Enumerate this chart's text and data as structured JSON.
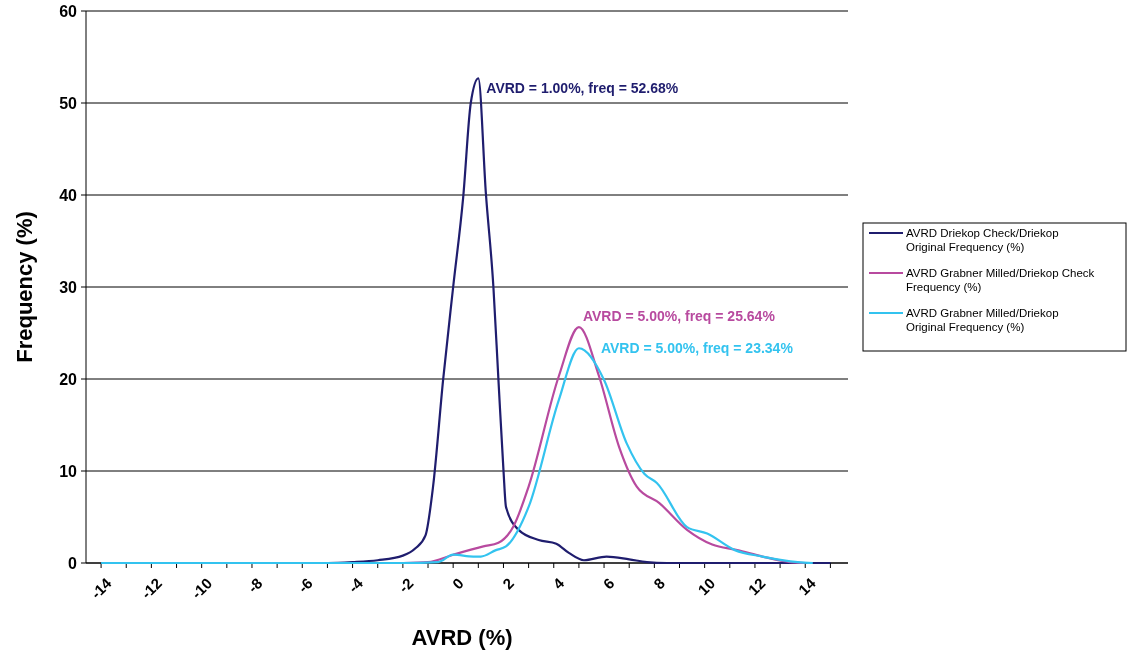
{
  "chart_data": {
    "type": "line",
    "xlabel": "AVRD (%)",
    "ylabel": "Frequency (%)",
    "xlim": [
      -14.6,
      15.7
    ],
    "ylim": [
      0,
      60
    ],
    "xticks": [
      -14,
      {
        "value": -13,
        "label": null
      },
      -12,
      {
        "value": -11,
        "label": null
      },
      -10,
      {
        "value": -9,
        "label": null
      },
      -8,
      {
        "value": -7,
        "label": null
      },
      -6,
      {
        "value": -5,
        "label": null
      },
      -4,
      {
        "value": -3,
        "label": null
      },
      -2,
      {
        "value": -1,
        "label": null
      },
      0,
      {
        "value": 1,
        "label": null
      },
      2,
      {
        "value": 3,
        "label": null
      },
      4,
      {
        "value": 5,
        "label": null
      },
      6,
      {
        "value": 7,
        "label": null
      },
      8,
      {
        "value": 9,
        "label": null
      },
      10,
      {
        "value": 11,
        "label": null
      },
      12,
      {
        "value": 13,
        "label": null
      },
      14,
      {
        "value": 15,
        "label": null
      }
    ],
    "yticks": [
      0,
      10,
      20,
      30,
      40,
      50,
      60
    ],
    "grid": "y",
    "legend": "right",
    "marker": "none",
    "line_style": "solid",
    "series": [
      {
        "name": "AVRD Driekop Check/Driekop Original Frequency (%)",
        "color": "#1f1d6e",
        "x": [
          -6,
          -5,
          -4,
          -3,
          -2,
          -1.5,
          -1.1,
          -0.8,
          -0.4,
          0,
          0.4,
          0.7,
          1,
          1.3,
          1.6,
          1.8,
          2,
          2.1,
          2.6,
          3.4,
          4.1,
          4.6,
          5.2,
          6.1,
          7,
          7.7,
          8.5,
          10,
          12,
          14,
          15
        ],
        "values": [
          0,
          0,
          0.1,
          0.3,
          0.8,
          1.6,
          3,
          8.3,
          19.9,
          30,
          39.8,
          50,
          52.68,
          40.2,
          30,
          19.9,
          10.1,
          6.1,
          3.6,
          2.5,
          2.1,
          1.1,
          0.3,
          0.7,
          0.4,
          0.1,
          0,
          0,
          0,
          0,
          0
        ]
      },
      {
        "name": "AVRD Grabner Milled/Driekop Check Frequency (%)",
        "color": "#b84a9f",
        "x": [
          -2,
          -1,
          0,
          1.2,
          1.8,
          2.4,
          3,
          4.2,
          5,
          5.8,
          6.6,
          7.3,
          8.2,
          9.3,
          10.3,
          11.3,
          12.3,
          13.4,
          14
        ],
        "values": [
          0,
          0.1,
          0.9,
          1.8,
          2.2,
          4,
          8.3,
          20.3,
          25.64,
          20.3,
          12.6,
          8.3,
          6.5,
          3.6,
          2,
          1.4,
          0.7,
          0.1,
          0
        ]
      },
      {
        "name": "AVRD Grabner Milled/Driekop Original Frequency (%)",
        "color": "#33c3ef",
        "x": [
          -14,
          -12,
          -10,
          -8,
          -6,
          -4,
          -2,
          -0.6,
          0,
          0.8,
          1.1,
          1.7,
          2.1,
          3,
          4.2,
          5,
          6,
          6.9,
          7.6,
          8.1,
          9.3,
          10.1,
          11.2,
          12.3,
          13.7,
          14.3
        ],
        "values": [
          0,
          0,
          0,
          0,
          0,
          0,
          0,
          0.1,
          0.9,
          0.7,
          0.7,
          1.4,
          1.8,
          6.1,
          17.7,
          23.34,
          19.9,
          13,
          9.7,
          8.7,
          3.9,
          3.2,
          1.4,
          0.7,
          0.1,
          0
        ]
      }
    ],
    "annotations": [
      "AVRD = 1.00%,  freq = 52.68%",
      "AVRD = 5.00%,  freq = 25.64%",
      "AVRD = 5.00%,  freq = 23.34%"
    ]
  }
}
